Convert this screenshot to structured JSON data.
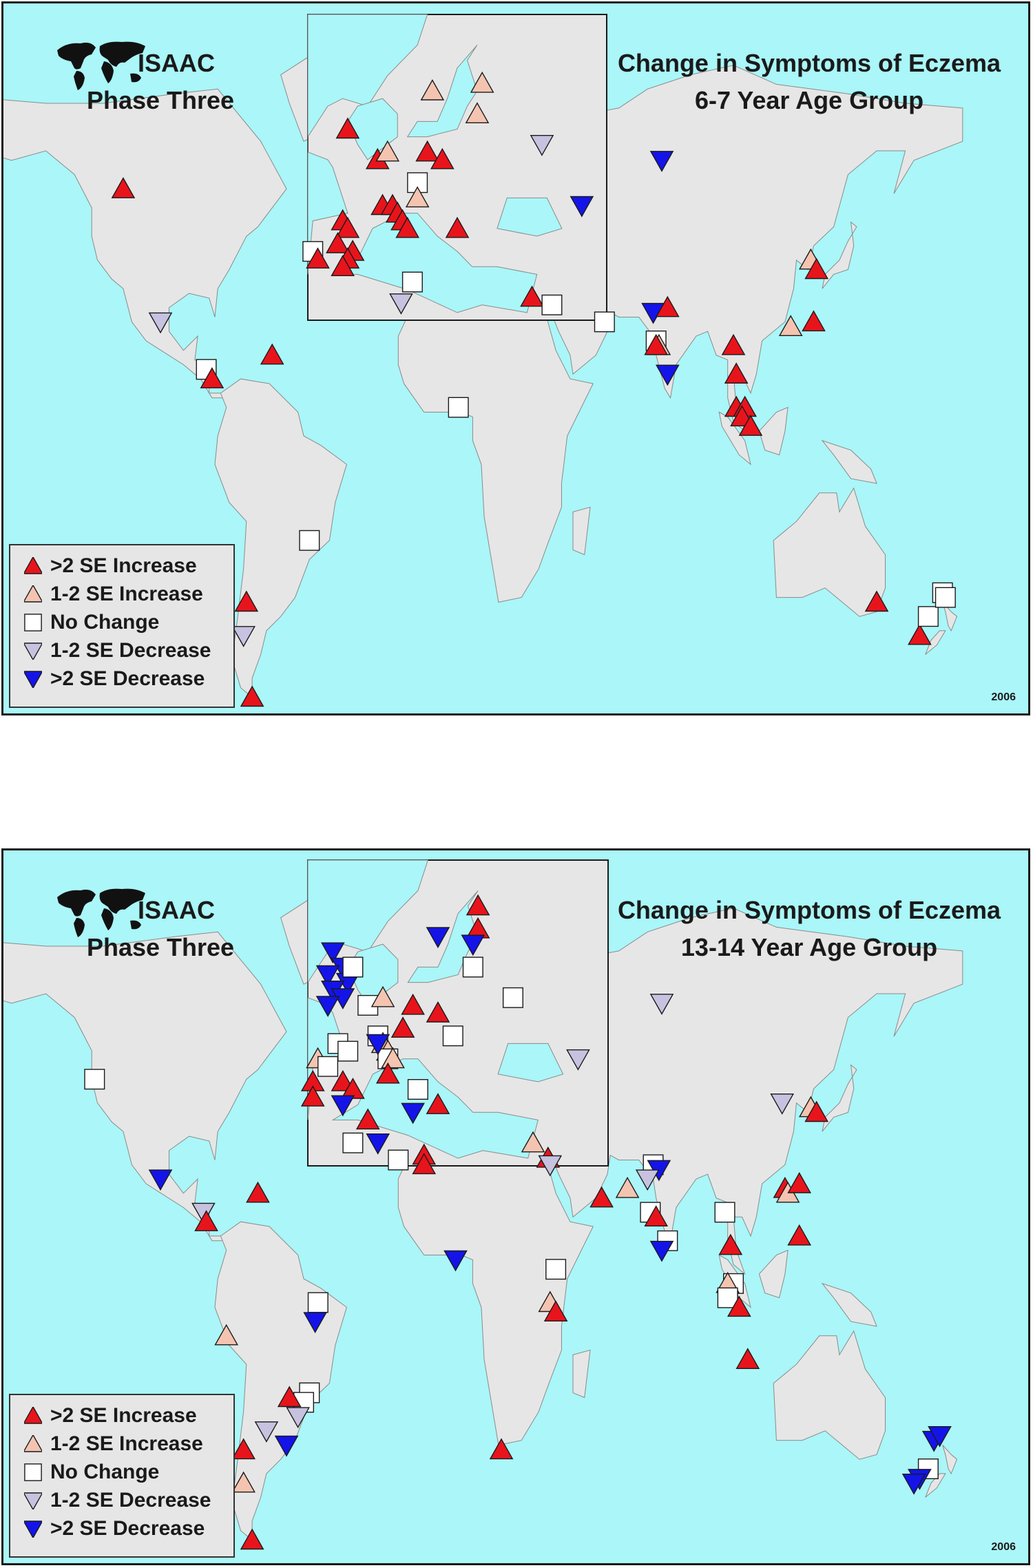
{
  "colors": {
    "ocean": "#aaf6f8",
    "land": "#e6e6e6",
    "border": "#8a8a8a",
    "increase_gt2": "#e8141c",
    "increase_1_2": "#f4c4b0",
    "no_change": "#ffffff",
    "decrease_1_2": "#c6c2e0",
    "decrease_gt2": "#1414e8"
  },
  "legend": [
    {
      "key": "increase_gt2",
      "shape": "triangle-up",
      "label": ">2 SE Increase"
    },
    {
      "key": "increase_1_2",
      "shape": "triangle-up",
      "label": "1-2 SE Increase"
    },
    {
      "key": "no_change",
      "shape": "square",
      "label": "No Change"
    },
    {
      "key": "decrease_1_2",
      "shape": "triangle-down",
      "label": "1-2 SE Decrease"
    },
    {
      "key": "decrease_gt2",
      "shape": "triangle-down",
      "label": ">2 SE Decrease"
    }
  ],
  "panels": [
    {
      "brand_line1": "ISAAC",
      "brand_line2": "Phase Three",
      "title_line1": "Change in Symptoms of Eczema",
      "title_line2": "6-7 Year Age Group",
      "year": "2006"
    },
    {
      "brand_line1": "ISAAC",
      "brand_line2": "Phase Three",
      "title_line1": "Change in Symptoms of Eczema",
      "title_line2": "13-14 Year Age Group",
      "year": "2006"
    }
  ],
  "centres": {
    "top": [
      {
        "c": "increase_gt2",
        "lon": -113,
        "lat": 52
      },
      {
        "c": "decrease_1_2",
        "lon": -100,
        "lat": 24
      },
      {
        "c": "no_change",
        "lon": -84,
        "lat": 14
      },
      {
        "c": "increase_gt2",
        "lon": -82,
        "lat": 12
      },
      {
        "c": "increase_gt2",
        "lon": -61,
        "lat": 17
      },
      {
        "c": "no_change",
        "lon": -48,
        "lat": -22
      },
      {
        "c": "increase_gt2",
        "lon": -70,
        "lat": -35
      },
      {
        "c": "decrease_1_2",
        "lon": -71,
        "lat": -42
      },
      {
        "c": "increase_gt2",
        "lon": -68,
        "lat": -55
      },
      {
        "c": "decrease_1_2",
        "lon": -16,
        "lat": 28
      },
      {
        "c": "no_change",
        "lon": 4,
        "lat": 6
      },
      {
        "c": "increase_gt2",
        "lon": 35,
        "lat": 33
      },
      {
        "c": "no_change",
        "lon": 39,
        "lat": 32
      },
      {
        "c": "no_change",
        "lon": 55,
        "lat": 24
      },
      {
        "c": "decrease_gt2",
        "lon": 72,
        "lat": 26
      },
      {
        "c": "increase_gt2",
        "lon": 77,
        "lat": 27
      },
      {
        "c": "no_change",
        "lon": 73,
        "lat": 20
      },
      {
        "c": "increase_1_2",
        "lon": 74,
        "lat": 19
      },
      {
        "c": "increase_gt2",
        "lon": 73,
        "lat": 19
      },
      {
        "c": "decrease_gt2",
        "lon": 77,
        "lat": 13
      },
      {
        "c": "decrease_gt2",
        "lon": 75,
        "lat": 58
      },
      {
        "c": "increase_gt2",
        "lon": 100,
        "lat": 19
      },
      {
        "c": "increase_gt2",
        "lon": 101,
        "lat": 13
      },
      {
        "c": "increase_gt2",
        "lon": 101,
        "lat": 6
      },
      {
        "c": "increase_gt2",
        "lon": 104,
        "lat": 6
      },
      {
        "c": "increase_gt2",
        "lon": 103,
        "lat": 4
      },
      {
        "c": "increase_gt2",
        "lon": 106,
        "lat": 2
      },
      {
        "c": "increase_1_2",
        "lon": 120,
        "lat": 23
      },
      {
        "c": "increase_gt2",
        "lon": 128,
        "lat": 24
      },
      {
        "c": "increase_1_2",
        "lon": 127,
        "lat": 37
      },
      {
        "c": "increase_gt2",
        "lon": 129,
        "lat": 35
      },
      {
        "c": "increase_gt2",
        "lon": 150,
        "lat": -35
      },
      {
        "c": "increase_gt2",
        "lon": 165,
        "lat": -42
      },
      {
        "c": "no_change",
        "lon": 168,
        "lat": -38
      },
      {
        "c": "no_change",
        "lon": 173,
        "lat": -33
      },
      {
        "c": "no_change",
        "lon": 174,
        "lat": -34
      },
      {
        "c": "increase_gt2",
        "lon": -2,
        "lat": 55
      },
      {
        "c": "increase_gt2",
        "lon": 4,
        "lat": 51
      },
      {
        "c": "increase_1_2",
        "lon": 6,
        "lat": 52
      },
      {
        "c": "increase_gt2",
        "lon": 14,
        "lat": 52
      },
      {
        "c": "increase_gt2",
        "lon": 17,
        "lat": 51
      },
      {
        "c": "increase_1_2",
        "lon": 15,
        "lat": 60
      },
      {
        "c": "increase_1_2",
        "lon": 25,
        "lat": 61
      },
      {
        "c": "increase_1_2",
        "lon": 24,
        "lat": 57
      },
      {
        "c": "decrease_1_2",
        "lon": 37,
        "lat": 53
      },
      {
        "c": "decrease_gt2",
        "lon": 45,
        "lat": 45
      },
      {
        "c": "no_change",
        "lon": 12,
        "lat": 48
      },
      {
        "c": "increase_1_2",
        "lon": 12,
        "lat": 46
      },
      {
        "c": "increase_gt2",
        "lon": -3,
        "lat": 43
      },
      {
        "c": "increase_gt2",
        "lon": -2,
        "lat": 42
      },
      {
        "c": "increase_gt2",
        "lon": -4,
        "lat": 40
      },
      {
        "c": "increase_gt2",
        "lon": -1,
        "lat": 39
      },
      {
        "c": "increase_gt2",
        "lon": -2,
        "lat": 38
      },
      {
        "c": "increase_gt2",
        "lon": -3,
        "lat": 37
      },
      {
        "c": "no_change",
        "lon": -9,
        "lat": 39
      },
      {
        "c": "increase_gt2",
        "lon": -8,
        "lat": 38
      },
      {
        "c": "increase_gt2",
        "lon": 5,
        "lat": 45
      },
      {
        "c": "increase_gt2",
        "lon": 7,
        "lat": 45
      },
      {
        "c": "increase_gt2",
        "lon": 8,
        "lat": 44
      },
      {
        "c": "increase_gt2",
        "lon": 9,
        "lat": 43
      },
      {
        "c": "increase_gt2",
        "lon": 10,
        "lat": 42
      },
      {
        "c": "increase_gt2",
        "lon": 20,
        "lat": 42
      },
      {
        "c": "no_change",
        "lon": 11,
        "lat": 35
      }
    ],
    "bottom": [
      {
        "c": "no_change",
        "lon": -123,
        "lat": 42
      },
      {
        "c": "decrease_gt2",
        "lon": -100,
        "lat": 21
      },
      {
        "c": "decrease_1_2",
        "lon": -85,
        "lat": 14
      },
      {
        "c": "increase_gt2",
        "lon": -84,
        "lat": 12
      },
      {
        "c": "increase_gt2",
        "lon": -66,
        "lat": 18
      },
      {
        "c": "increase_1_2",
        "lon": -77,
        "lat": -12
      },
      {
        "c": "no_change",
        "lon": -45,
        "lat": -5
      },
      {
        "c": "decrease_gt2",
        "lon": -46,
        "lat": -9
      },
      {
        "c": "no_change",
        "lon": -48,
        "lat": -24
      },
      {
        "c": "no_change",
        "lon": -50,
        "lat": -26
      },
      {
        "c": "increase_gt2",
        "lon": -55,
        "lat": -25
      },
      {
        "c": "decrease_1_2",
        "lon": -52,
        "lat": -29
      },
      {
        "c": "decrease_1_2",
        "lon": -63,
        "lat": -32
      },
      {
        "c": "decrease_gt2",
        "lon": -56,
        "lat": -35
      },
      {
        "c": "increase_gt2",
        "lon": -71,
        "lat": -36
      },
      {
        "c": "increase_1_2",
        "lon": -71,
        "lat": -43
      },
      {
        "c": "increase_gt2",
        "lon": -68,
        "lat": -55
      },
      {
        "c": "no_change",
        "lon": -17,
        "lat": 25
      },
      {
        "c": "increase_gt2",
        "lon": -8,
        "lat": 26
      },
      {
        "c": "increase_gt2",
        "lon": -8,
        "lat": 24
      },
      {
        "c": "decrease_gt2",
        "lon": 3,
        "lat": 4
      },
      {
        "c": "no_change",
        "lon": 38,
        "lat": 2
      },
      {
        "c": "increase_1_2",
        "lon": 36,
        "lat": -5
      },
      {
        "c": "increase_gt2",
        "lon": 38,
        "lat": -7
      },
      {
        "c": "increase_gt2",
        "lon": 19,
        "lat": -36
      },
      {
        "c": "increase_1_2",
        "lon": 35,
        "lat": 33
      },
      {
        "c": "increase_gt2",
        "lon": 38,
        "lat": 31
      },
      {
        "c": "decrease_1_2",
        "lon": 36,
        "lat": 24
      },
      {
        "c": "increase_gt2",
        "lon": 54,
        "lat": 17
      },
      {
        "c": "increase_1_2",
        "lon": 63,
        "lat": 19
      },
      {
        "c": "no_change",
        "lon": 72,
        "lat": 24
      },
      {
        "c": "decrease_gt2",
        "lon": 74,
        "lat": 23
      },
      {
        "c": "decrease_1_2",
        "lon": 70,
        "lat": 21
      },
      {
        "c": "no_change",
        "lon": 71,
        "lat": 14
      },
      {
        "c": "increase_gt2",
        "lon": 73,
        "lat": 13
      },
      {
        "c": "no_change",
        "lon": 77,
        "lat": 8
      },
      {
        "c": "decrease_gt2",
        "lon": 75,
        "lat": 6
      },
      {
        "c": "decrease_1_2",
        "lon": 75,
        "lat": 58
      },
      {
        "c": "no_change",
        "lon": 97,
        "lat": 14
      },
      {
        "c": "increase_gt2",
        "lon": 99,
        "lat": 7
      },
      {
        "c": "no_change",
        "lon": 100,
        "lat": -1
      },
      {
        "c": "increase_1_2",
        "lon": 98,
        "lat": -1
      },
      {
        "c": "no_change",
        "lon": 98,
        "lat": -4
      },
      {
        "c": "increase_gt2",
        "lon": 102,
        "lat": -6
      },
      {
        "c": "increase_gt2",
        "lon": 105,
        "lat": -17
      },
      {
        "c": "increase_gt2",
        "lon": 118,
        "lat": 19
      },
      {
        "c": "increase_1_2",
        "lon": 119,
        "lat": 18
      },
      {
        "c": "increase_gt2",
        "lon": 123,
        "lat": 20
      },
      {
        "c": "increase_gt2",
        "lon": 123,
        "lat": 9
      },
      {
        "c": "decrease_1_2",
        "lon": 117,
        "lat": 37
      },
      {
        "c": "increase_1_2",
        "lon": 127,
        "lat": 36
      },
      {
        "c": "increase_gt2",
        "lon": 129,
        "lat": 35
      },
      {
        "c": "decrease_gt2",
        "lon": 170,
        "lat": -34
      },
      {
        "c": "decrease_gt2",
        "lon": 172,
        "lat": -33
      },
      {
        "c": "no_change",
        "lon": 168,
        "lat": -40
      },
      {
        "c": "decrease_gt2",
        "lon": 165,
        "lat": -42
      },
      {
        "c": "decrease_gt2",
        "lon": 163,
        "lat": -43
      },
      {
        "c": "decrease_gt2",
        "lon": -5,
        "lat": 58
      },
      {
        "c": "decrease_gt2",
        "lon": -3,
        "lat": 56
      },
      {
        "c": "decrease_gt2",
        "lon": -6,
        "lat": 55
      },
      {
        "c": "decrease_gt2",
        "lon": -2,
        "lat": 54
      },
      {
        "c": "decrease_gt2",
        "lon": -5,
        "lat": 53
      },
      {
        "c": "decrease_gt2",
        "lon": -3,
        "lat": 52
      },
      {
        "c": "decrease_gt2",
        "lon": -6,
        "lat": 51
      },
      {
        "c": "no_change",
        "lon": -1,
        "lat": 56
      },
      {
        "c": "no_change",
        "lon": 2,
        "lat": 51
      },
      {
        "c": "increase_1_2",
        "lon": 5,
        "lat": 52
      },
      {
        "c": "decrease_gt2",
        "lon": 16,
        "lat": 60
      },
      {
        "c": "increase_gt2",
        "lon": 24,
        "lat": 64
      },
      {
        "c": "increase_gt2",
        "lon": 24,
        "lat": 61
      },
      {
        "c": "decrease_gt2",
        "lon": 23,
        "lat": 59
      },
      {
        "c": "no_change",
        "lon": 23,
        "lat": 56
      },
      {
        "c": "no_change",
        "lon": 31,
        "lat": 52
      },
      {
        "c": "increase_gt2",
        "lon": 11,
        "lat": 51
      },
      {
        "c": "increase_gt2",
        "lon": 16,
        "lat": 50
      },
      {
        "c": "increase_gt2",
        "lon": 9,
        "lat": 48
      },
      {
        "c": "no_change",
        "lon": 19,
        "lat": 47
      },
      {
        "c": "decrease_1_2",
        "lon": 44,
        "lat": 44
      },
      {
        "c": "no_change",
        "lon": 4,
        "lat": 47
      },
      {
        "c": "increase_1_2",
        "lon": 5,
        "lat": 46
      },
      {
        "c": "increase_1_2",
        "lon": 6,
        "lat": 45
      },
      {
        "c": "no_change",
        "lon": 6,
        "lat": 44
      },
      {
        "c": "increase_1_2",
        "lon": 7,
        "lat": 44
      },
      {
        "c": "increase_gt2",
        "lon": 6,
        "lat": 42
      },
      {
        "c": "no_change",
        "lon": 12,
        "lat": 40
      },
      {
        "c": "increase_gt2",
        "lon": 16,
        "lat": 38
      },
      {
        "c": "decrease_gt2",
        "lon": 11,
        "lat": 37
      },
      {
        "c": "no_change",
        "lon": -4,
        "lat": 46
      },
      {
        "c": "no_change",
        "lon": -2,
        "lat": 45
      },
      {
        "c": "increase_1_2",
        "lon": -8,
        "lat": 44
      },
      {
        "c": "no_change",
        "lon": -6,
        "lat": 43
      },
      {
        "c": "increase_gt2",
        "lon": -9,
        "lat": 41
      },
      {
        "c": "increase_gt2",
        "lon": -9,
        "lat": 39
      },
      {
        "c": "increase_gt2",
        "lon": -3,
        "lat": 41
      },
      {
        "c": "increase_gt2",
        "lon": -1,
        "lat": 40
      },
      {
        "c": "decrease_gt2",
        "lon": -3,
        "lat": 38
      },
      {
        "c": "increase_gt2",
        "lon": 2,
        "lat": 36
      },
      {
        "c": "decrease_gt2",
        "lon": 4,
        "lat": 46
      },
      {
        "c": "no_change",
        "lon": -1,
        "lat": 33
      },
      {
        "c": "decrease_gt2",
        "lon": 4,
        "lat": 33
      }
    ]
  }
}
